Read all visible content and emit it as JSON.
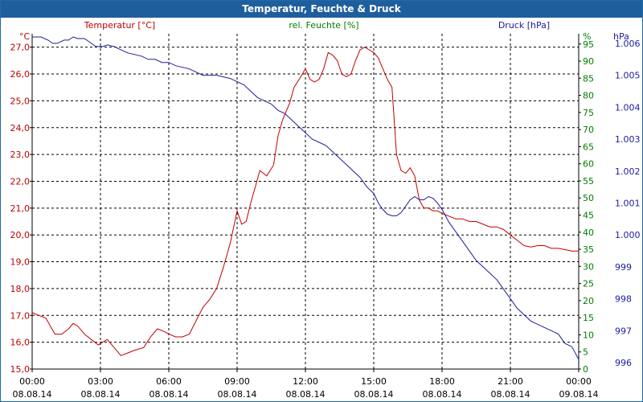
{
  "window": {
    "title": "Temperatur, Feuchte & Druck"
  },
  "chart_data": {
    "type": "line",
    "title": "Temperatur, Feuchte & Druck",
    "colors": {
      "temperature": "#c00000",
      "humidity": "#008000",
      "pressure": "#1c1ca0",
      "grid": "#000000"
    },
    "x_ticks": [
      {
        "time": "00:00",
        "date": "08.08.14"
      },
      {
        "time": "03:00",
        "date": "08.08.14"
      },
      {
        "time": "06:00",
        "date": "08.08.14"
      },
      {
        "time": "09:00",
        "date": "08.08.14"
      },
      {
        "time": "12:00",
        "date": "08.08.14"
      },
      {
        "time": "15:00",
        "date": "08.08.14"
      },
      {
        "time": "18:00",
        "date": "08.08.14"
      },
      {
        "time": "21:00",
        "date": "08.08.14"
      },
      {
        "time": "00:00",
        "date": "09.08.14"
      }
    ],
    "xlim_hours": [
      0,
      24
    ],
    "axes": {
      "temperature": {
        "label": "Temperatur [°C]",
        "unit": "°C",
        "ylim": [
          15,
          27.5
        ],
        "ticks": [
          "15,0",
          "16,0",
          "17,0",
          "18,0",
          "19,0",
          "20,0",
          "21,0",
          "22,0",
          "23,0",
          "24,0",
          "25,0",
          "26,0",
          "27,0"
        ]
      },
      "humidity": {
        "label": "rel. Feuchte [%]",
        "unit": "%",
        "ylim": [
          0,
          98
        ],
        "ticks": [
          "0",
          "5",
          "10",
          "15",
          "20",
          "25",
          "30",
          "35",
          "40",
          "45",
          "50",
          "55",
          "60",
          "65",
          "70",
          "75",
          "80",
          "85",
          "90",
          "95"
        ]
      },
      "pressure": {
        "label": "Druck [hPa]",
        "unit": "hPa",
        "ylim": [
          995.8,
          1006.3
        ],
        "ticks": [
          "996",
          "997",
          "998",
          "999",
          "1.000",
          "1.001",
          "1.002",
          "1.003",
          "1.004",
          "1.005",
          "1.006"
        ]
      }
    },
    "series": [
      {
        "name": "Temperatur",
        "axis": "temperature",
        "points": [
          [
            0,
            17.1
          ],
          [
            0.3,
            17.0
          ],
          [
            0.6,
            16.9
          ],
          [
            0.8,
            16.6
          ],
          [
            1.0,
            16.3
          ],
          [
            1.3,
            16.3
          ],
          [
            1.6,
            16.5
          ],
          [
            1.8,
            16.7
          ],
          [
            2.0,
            16.6
          ],
          [
            2.3,
            16.3
          ],
          [
            2.6,
            16.1
          ],
          [
            2.9,
            15.9
          ],
          [
            3.1,
            16.0
          ],
          [
            3.3,
            16.1
          ],
          [
            3.6,
            15.8
          ],
          [
            3.9,
            15.5
          ],
          [
            4.2,
            15.6
          ],
          [
            4.5,
            15.7
          ],
          [
            4.9,
            15.8
          ],
          [
            5.2,
            16.2
          ],
          [
            5.5,
            16.5
          ],
          [
            5.8,
            16.4
          ],
          [
            6.0,
            16.3
          ],
          [
            6.3,
            16.2
          ],
          [
            6.6,
            16.2
          ],
          [
            6.9,
            16.3
          ],
          [
            7.2,
            16.8
          ],
          [
            7.5,
            17.3
          ],
          [
            7.8,
            17.6
          ],
          [
            8.1,
            18.0
          ],
          [
            8.4,
            18.8
          ],
          [
            8.7,
            19.7
          ],
          [
            9.0,
            20.9
          ],
          [
            9.2,
            20.4
          ],
          [
            9.4,
            20.5
          ],
          [
            9.6,
            21.2
          ],
          [
            9.8,
            21.8
          ],
          [
            10.0,
            22.4
          ],
          [
            10.3,
            22.2
          ],
          [
            10.6,
            22.6
          ],
          [
            10.8,
            23.7
          ],
          [
            11.0,
            24.3
          ],
          [
            11.3,
            24.9
          ],
          [
            11.5,
            25.5
          ],
          [
            11.8,
            25.9
          ],
          [
            12.0,
            26.2
          ],
          [
            12.2,
            25.8
          ],
          [
            12.4,
            25.7
          ],
          [
            12.6,
            25.8
          ],
          [
            12.8,
            26.2
          ],
          [
            13.0,
            26.8
          ],
          [
            13.2,
            26.7
          ],
          [
            13.4,
            26.5
          ],
          [
            13.6,
            26.0
          ],
          [
            13.8,
            25.9
          ],
          [
            14.0,
            26.0
          ],
          [
            14.2,
            26.5
          ],
          [
            14.4,
            26.9
          ],
          [
            14.6,
            27.0
          ],
          [
            14.8,
            26.9
          ],
          [
            15.0,
            26.8
          ],
          [
            15.2,
            26.6
          ],
          [
            15.4,
            26.2
          ],
          [
            15.6,
            25.8
          ],
          [
            15.8,
            25.5
          ],
          [
            16.0,
            23.0
          ],
          [
            16.2,
            22.4
          ],
          [
            16.4,
            22.3
          ],
          [
            16.6,
            22.5
          ],
          [
            16.8,
            22.2
          ],
          [
            17.0,
            21.3
          ],
          [
            17.2,
            21.0
          ],
          [
            17.4,
            21.0
          ],
          [
            17.6,
            20.9
          ],
          [
            17.8,
            20.9
          ],
          [
            18.0,
            20.8
          ],
          [
            18.3,
            20.7
          ],
          [
            18.6,
            20.6
          ],
          [
            18.9,
            20.6
          ],
          [
            19.2,
            20.5
          ],
          [
            19.5,
            20.5
          ],
          [
            19.8,
            20.4
          ],
          [
            20.1,
            20.3
          ],
          [
            20.4,
            20.3
          ],
          [
            20.7,
            20.2
          ],
          [
            21.0,
            20.0
          ],
          [
            21.3,
            19.8
          ],
          [
            21.6,
            19.6
          ],
          [
            21.9,
            19.55
          ],
          [
            22.2,
            19.6
          ],
          [
            22.5,
            19.6
          ],
          [
            22.8,
            19.5
          ],
          [
            23.1,
            19.5
          ],
          [
            23.4,
            19.45
          ],
          [
            23.7,
            19.4
          ],
          [
            24.0,
            19.4
          ]
        ]
      },
      {
        "name": "Druck",
        "axis": "pressure",
        "points": [
          [
            0,
            1006.2
          ],
          [
            0.4,
            1006.2
          ],
          [
            0.7,
            1006.1
          ],
          [
            0.9,
            1006.0
          ],
          [
            1.1,
            1006.0
          ],
          [
            1.4,
            1006.1
          ],
          [
            1.6,
            1006.1
          ],
          [
            1.8,
            1006.2
          ],
          [
            2.0,
            1006.15
          ],
          [
            2.3,
            1006.15
          ],
          [
            2.6,
            1006.0
          ],
          [
            2.8,
            1005.9
          ],
          [
            3.1,
            1005.9
          ],
          [
            3.3,
            1005.95
          ],
          [
            3.6,
            1005.9
          ],
          [
            3.9,
            1005.8
          ],
          [
            4.2,
            1005.7
          ],
          [
            4.5,
            1005.65
          ],
          [
            4.8,
            1005.6
          ],
          [
            5.1,
            1005.5
          ],
          [
            5.4,
            1005.5
          ],
          [
            5.7,
            1005.4
          ],
          [
            6.0,
            1005.4
          ],
          [
            6.3,
            1005.3
          ],
          [
            6.6,
            1005.25
          ],
          [
            6.9,
            1005.2
          ],
          [
            7.2,
            1005.1
          ],
          [
            7.5,
            1005.0
          ],
          [
            7.8,
            1005.0
          ],
          [
            8.1,
            1005.0
          ],
          [
            8.4,
            1004.95
          ],
          [
            8.7,
            1004.9
          ],
          [
            9.0,
            1004.8
          ],
          [
            9.3,
            1004.7
          ],
          [
            9.6,
            1004.5
          ],
          [
            9.9,
            1004.3
          ],
          [
            10.2,
            1004.2
          ],
          [
            10.5,
            1004.1
          ],
          [
            10.8,
            1003.9
          ],
          [
            11.1,
            1003.8
          ],
          [
            11.4,
            1003.6
          ],
          [
            11.7,
            1003.4
          ],
          [
            12.0,
            1003.2
          ],
          [
            12.3,
            1003.0
          ],
          [
            12.6,
            1002.9
          ],
          [
            12.9,
            1002.8
          ],
          [
            13.2,
            1002.6
          ],
          [
            13.5,
            1002.4
          ],
          [
            13.8,
            1002.2
          ],
          [
            14.1,
            1002.0
          ],
          [
            14.4,
            1001.8
          ],
          [
            14.7,
            1001.5
          ],
          [
            15.0,
            1001.3
          ],
          [
            15.2,
            1001.0
          ],
          [
            15.4,
            1000.8
          ],
          [
            15.6,
            1000.65
          ],
          [
            15.8,
            1000.6
          ],
          [
            16.0,
            1000.6
          ],
          [
            16.2,
            1000.7
          ],
          [
            16.4,
            1000.9
          ],
          [
            16.6,
            1001.1
          ],
          [
            16.8,
            1001.2
          ],
          [
            17.0,
            1001.1
          ],
          [
            17.2,
            1001.1
          ],
          [
            17.4,
            1001.2
          ],
          [
            17.6,
            1001.15
          ],
          [
            17.8,
            1001.0
          ],
          [
            18.0,
            1000.8
          ],
          [
            18.3,
            1000.4
          ],
          [
            18.6,
            1000.1
          ],
          [
            18.9,
            999.8
          ],
          [
            19.2,
            999.5
          ],
          [
            19.5,
            999.2
          ],
          [
            19.8,
            999.0
          ],
          [
            20.1,
            998.8
          ],
          [
            20.4,
            998.6
          ],
          [
            20.7,
            998.3
          ],
          [
            21.0,
            998.0
          ],
          [
            21.3,
            997.7
          ],
          [
            21.6,
            997.5
          ],
          [
            21.9,
            997.3
          ],
          [
            22.2,
            997.2
          ],
          [
            22.5,
            997.1
          ],
          [
            22.8,
            997.0
          ],
          [
            23.1,
            996.9
          ],
          [
            23.4,
            996.6
          ],
          [
            23.7,
            996.5
          ],
          [
            24.0,
            996.1
          ]
        ]
      }
    ]
  }
}
